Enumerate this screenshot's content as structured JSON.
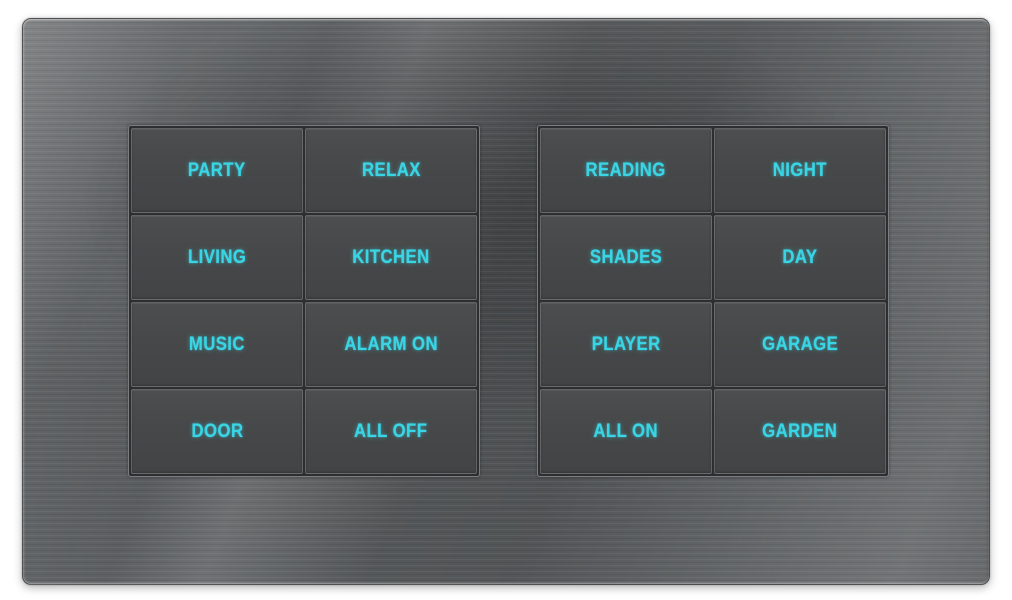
{
  "device": {
    "type": "smart-home-keypad-panel",
    "colors": {
      "label": "#3AD5E5",
      "plate": "#5B5E60",
      "button_face": "#474849",
      "groove": "#2C2E2F",
      "page_background": "#FFFFFF"
    },
    "groups": [
      {
        "position": "left",
        "buttons": [
          "PARTY",
          "RELAX",
          "LIVING",
          "KITCHEN",
          "MUSIC",
          "ALARM ON",
          "DOOR",
          "ALL OFF"
        ]
      },
      {
        "position": "right",
        "buttons": [
          "READING",
          "NIGHT",
          "SHADES",
          "DAY",
          "PLAYER",
          "GARAGE",
          "ALL ON",
          "GARDEN"
        ]
      }
    ]
  }
}
